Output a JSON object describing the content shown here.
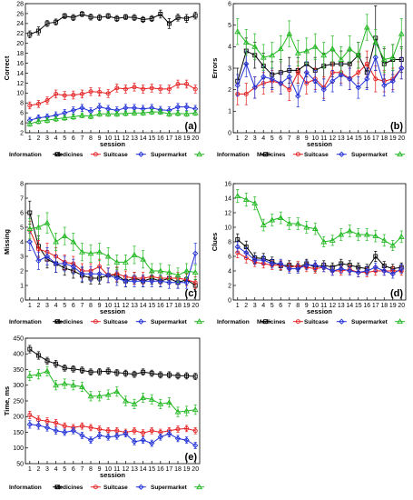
{
  "colors": {
    "Information": "#000000",
    "Medicines": "#e41a1c",
    "Suitcase": "#1f2fd6",
    "Supermarket": "#22b822"
  },
  "legend_labels": [
    "Information",
    "Medicines",
    "Suitcase",
    "Supermarket"
  ],
  "chart_data": [
    {
      "type": "line",
      "panel": "(a)",
      "ylabel": "Correct",
      "xlabel": "session",
      "ylim": [
        2,
        28
      ],
      "yticks": [
        2,
        4,
        6,
        8,
        10,
        12,
        14,
        16,
        18,
        20,
        22,
        24,
        26,
        28
      ],
      "x": [
        1,
        2,
        3,
        4,
        5,
        6,
        7,
        8,
        9,
        10,
        11,
        12,
        13,
        14,
        15,
        16,
        17,
        18,
        19,
        20
      ],
      "series": [
        {
          "name": "Information",
          "values": [
            21.8,
            22.5,
            24.0,
            24.3,
            25.5,
            25.2,
            25.9,
            25.3,
            25.2,
            25.5,
            25.0,
            25.3,
            25.2,
            24.8,
            25.0,
            25.9,
            24.0,
            25.2,
            25.0,
            25.6
          ],
          "error": [
            0.7,
            0.8,
            0.6,
            0.6,
            0.5,
            0.6,
            0.5,
            0.6,
            0.6,
            0.5,
            0.6,
            0.5,
            0.6,
            0.6,
            0.6,
            0.8,
            1.0,
            0.7,
            0.8,
            0.7
          ]
        },
        {
          "name": "Medicines",
          "values": [
            7.5,
            7.8,
            8.5,
            9.8,
            9.5,
            9.6,
            9.8,
            10.3,
            10.2,
            9.9,
            11.0,
            10.8,
            11.2,
            10.8,
            11.0,
            10.8,
            10.8,
            11.8,
            11.8,
            10.8
          ],
          "error": [
            0.7,
            0.7,
            0.7,
            0.8,
            0.8,
            0.8,
            0.8,
            0.8,
            0.8,
            0.8,
            0.8,
            0.8,
            0.8,
            0.8,
            0.8,
            0.8,
            0.8,
            0.8,
            0.8,
            0.8
          ]
        },
        {
          "name": "Suitcase",
          "values": [
            4.5,
            5.0,
            5.2,
            5.5,
            6.0,
            6.5,
            7.0,
            6.3,
            7.2,
            6.8,
            6.5,
            7.0,
            7.0,
            6.8,
            7.0,
            6.6,
            6.5,
            7.2,
            7.2,
            6.8
          ],
          "error": [
            0.6,
            0.6,
            0.6,
            0.7,
            0.7,
            0.7,
            0.7,
            0.7,
            0.7,
            0.7,
            0.7,
            0.7,
            0.7,
            0.7,
            0.7,
            0.7,
            0.7,
            0.7,
            0.7,
            0.7
          ]
        },
        {
          "name": "Supermarket",
          "values": [
            3.8,
            4.3,
            4.5,
            4.8,
            5.0,
            5.2,
            5.5,
            5.3,
            5.8,
            5.8,
            5.8,
            5.9,
            6.0,
            6.0,
            6.2,
            6.2,
            5.8,
            5.9,
            5.8,
            6.0
          ],
          "error": [
            0.5,
            0.5,
            0.5,
            0.5,
            0.5,
            0.5,
            0.5,
            0.5,
            0.5,
            0.5,
            0.5,
            0.5,
            0.5,
            0.5,
            0.5,
            0.5,
            0.5,
            0.5,
            0.5,
            0.5
          ]
        }
      ]
    },
    {
      "type": "line",
      "panel": "(b)",
      "ylabel": "Errors",
      "xlabel": "session",
      "ylim": [
        0,
        6
      ],
      "yticks": [
        0,
        1,
        2,
        3,
        4,
        5,
        6
      ],
      "x": [
        1,
        2,
        3,
        4,
        5,
        6,
        7,
        8,
        9,
        10,
        11,
        12,
        13,
        14,
        15,
        16,
        17,
        18,
        19,
        20
      ],
      "series": [
        {
          "name": "Information",
          "values": [
            2.4,
            3.8,
            3.6,
            3.1,
            2.7,
            2.8,
            2.9,
            2.9,
            3.2,
            2.9,
            3.1,
            3.2,
            3.2,
            3.2,
            3.6,
            2.8,
            4.4,
            3.2,
            3.4,
            3.4
          ],
          "error": [
            0.6,
            0.6,
            0.6,
            0.6,
            0.6,
            0.6,
            0.6,
            0.6,
            0.6,
            0.6,
            0.6,
            0.6,
            0.6,
            0.6,
            0.6,
            0.7,
            1.5,
            0.7,
            0.7,
            0.6
          ]
        },
        {
          "name": "Medicines",
          "values": [
            1.8,
            1.8,
            2.1,
            2.3,
            2.4,
            2.3,
            2.0,
            2.8,
            2.3,
            2.5,
            2.1,
            2.8,
            2.8,
            2.5,
            2.8,
            3.2,
            2.5,
            2.4,
            2.5,
            3.0
          ],
          "error": [
            0.5,
            0.5,
            0.5,
            0.5,
            0.5,
            0.5,
            0.5,
            0.5,
            0.5,
            0.5,
            0.5,
            0.5,
            0.5,
            0.5,
            0.5,
            0.6,
            0.6,
            0.5,
            0.5,
            0.5
          ]
        },
        {
          "name": "Suitcase",
          "values": [
            2.2,
            3.2,
            2.1,
            2.6,
            2.5,
            2.3,
            2.6,
            1.7,
            2.8,
            2.4,
            2.0,
            2.4,
            2.7,
            2.5,
            2.1,
            2.5,
            3.5,
            2.2,
            2.4,
            3.0
          ],
          "error": [
            0.5,
            0.6,
            0.5,
            0.5,
            0.5,
            0.5,
            0.5,
            0.5,
            0.5,
            0.5,
            0.5,
            0.5,
            0.5,
            0.5,
            0.5,
            0.5,
            0.6,
            0.5,
            0.5,
            0.5
          ]
        },
        {
          "name": "Supermarket",
          "values": [
            4.7,
            4.2,
            4.0,
            3.5,
            3.6,
            3.9,
            4.6,
            3.7,
            3.8,
            4.0,
            3.6,
            3.9,
            3.4,
            3.9,
            3.6,
            4.9,
            4.2,
            3.4,
            3.5,
            4.6
          ],
          "error": [
            0.6,
            0.6,
            0.6,
            0.6,
            0.6,
            0.6,
            0.6,
            0.6,
            0.6,
            0.6,
            0.6,
            0.6,
            0.6,
            0.6,
            0.6,
            0.6,
            0.6,
            0.6,
            0.6,
            0.7
          ]
        }
      ]
    },
    {
      "type": "line",
      "panel": "(c)",
      "ylabel": "Missing",
      "xlabel": "session",
      "ylim": [
        0,
        8
      ],
      "yticks": [
        0,
        1,
        2,
        3,
        4,
        5,
        6,
        7,
        8
      ],
      "x": [
        1,
        2,
        3,
        4,
        5,
        6,
        7,
        8,
        9,
        10,
        11,
        12,
        13,
        14,
        15,
        16,
        17,
        18,
        19,
        20
      ],
      "series": [
        {
          "name": "Information",
          "values": [
            6.0,
            3.7,
            2.8,
            2.5,
            2.2,
            2.0,
            1.7,
            1.5,
            1.5,
            1.7,
            1.7,
            1.3,
            1.5,
            1.3,
            1.5,
            1.3,
            1.5,
            1.2,
            1.4,
            1.0
          ],
          "error": [
            0.8,
            0.7,
            0.6,
            0.6,
            0.5,
            0.5,
            0.5,
            0.4,
            0.4,
            0.5,
            0.5,
            0.4,
            0.4,
            0.4,
            0.4,
            0.4,
            0.4,
            0.4,
            0.4,
            0.4
          ]
        },
        {
          "name": "Medicines",
          "values": [
            4.8,
            3.5,
            3.3,
            3.0,
            2.6,
            2.5,
            2.0,
            2.0,
            2.3,
            1.7,
            1.8,
            1.6,
            1.5,
            1.5,
            1.6,
            1.5,
            1.5,
            1.5,
            1.4,
            1.2
          ],
          "error": [
            0.6,
            0.6,
            0.6,
            0.6,
            0.5,
            0.5,
            0.5,
            0.5,
            0.5,
            0.5,
            0.5,
            0.4,
            0.4,
            0.4,
            0.4,
            0.4,
            0.4,
            0.4,
            0.4,
            0.4
          ]
        },
        {
          "name": "Suitcase",
          "values": [
            4.0,
            2.7,
            3.0,
            2.5,
            2.5,
            2.3,
            1.8,
            1.8,
            1.8,
            1.7,
            1.5,
            1.3,
            1.3,
            1.3,
            1.3,
            1.3,
            1.2,
            1.2,
            1.2,
            3.2
          ],
          "error": [
            0.6,
            0.6,
            0.6,
            0.6,
            0.5,
            0.5,
            0.5,
            0.5,
            0.5,
            0.5,
            0.5,
            0.4,
            0.4,
            0.4,
            0.4,
            0.4,
            0.4,
            0.4,
            0.4,
            0.7
          ]
        },
        {
          "name": "Supermarket",
          "values": [
            4.9,
            5.0,
            5.3,
            4.0,
            4.4,
            4.0,
            3.3,
            3.2,
            3.3,
            3.0,
            2.6,
            2.6,
            3.1,
            2.8,
            2.0,
            2.0,
            1.9,
            1.7,
            2.0,
            1.9
          ],
          "error": [
            0.7,
            0.8,
            0.7,
            0.6,
            0.6,
            0.6,
            0.6,
            0.6,
            0.6,
            0.6,
            0.5,
            0.5,
            0.6,
            0.6,
            0.5,
            0.5,
            0.5,
            0.5,
            0.5,
            0.5
          ]
        }
      ]
    },
    {
      "type": "line",
      "panel": "(d)",
      "ylabel": "Clues",
      "xlabel": "session",
      "ylim": [
        0,
        16
      ],
      "yticks": [
        0,
        2,
        4,
        6,
        8,
        10,
        12,
        14,
        16
      ],
      "x": [
        1,
        2,
        3,
        4,
        5,
        6,
        7,
        8,
        9,
        10,
        11,
        12,
        13,
        14,
        15,
        16,
        17,
        18,
        19,
        20
      ],
      "series": [
        {
          "name": "Information",
          "values": [
            8.3,
            7.3,
            5.8,
            5.7,
            5.3,
            4.7,
            4.8,
            4.5,
            5.0,
            4.5,
            4.8,
            4.5,
            5.0,
            4.8,
            4.5,
            4.3,
            6.0,
            4.7,
            4.3,
            4.5
          ],
          "error": [
            0.8,
            0.8,
            0.7,
            0.7,
            0.6,
            0.6,
            0.6,
            0.6,
            0.6,
            0.6,
            0.6,
            0.6,
            0.6,
            0.6,
            0.6,
            0.6,
            0.7,
            0.6,
            0.6,
            0.6
          ]
        },
        {
          "name": "Medicines",
          "values": [
            6.5,
            5.8,
            5.2,
            5.0,
            4.8,
            4.8,
            4.5,
            4.7,
            4.5,
            4.3,
            4.5,
            4.0,
            4.0,
            4.2,
            3.8,
            3.8,
            4.0,
            4.0,
            4.0,
            4.0
          ],
          "error": [
            0.7,
            0.7,
            0.6,
            0.6,
            0.6,
            0.6,
            0.6,
            0.6,
            0.6,
            0.6,
            0.6,
            0.6,
            0.6,
            0.6,
            0.6,
            0.6,
            0.6,
            0.6,
            0.6,
            0.6
          ]
        },
        {
          "name": "Suitcase",
          "values": [
            7.3,
            6.5,
            5.5,
            5.5,
            5.0,
            5.0,
            4.3,
            4.3,
            4.8,
            4.8,
            4.5,
            4.0,
            4.3,
            4.0,
            3.8,
            4.0,
            4.5,
            4.0,
            3.6,
            4.3
          ],
          "error": [
            0.7,
            0.7,
            0.6,
            0.6,
            0.6,
            0.6,
            0.6,
            0.6,
            0.6,
            0.6,
            0.6,
            0.6,
            0.6,
            0.6,
            0.6,
            0.6,
            0.6,
            0.6,
            0.6,
            0.6
          ]
        },
        {
          "name": "Supermarket",
          "values": [
            14.3,
            13.8,
            13.3,
            10.3,
            11.0,
            11.3,
            10.5,
            10.5,
            10.0,
            9.8,
            8.0,
            8.2,
            9.0,
            9.5,
            9.0,
            9.0,
            8.8,
            8.2,
            7.5,
            8.7
          ],
          "error": [
            0.9,
            0.9,
            0.9,
            0.8,
            0.8,
            0.8,
            0.8,
            0.8,
            0.8,
            0.8,
            0.7,
            0.7,
            0.8,
            0.8,
            0.8,
            0.8,
            0.8,
            0.8,
            0.7,
            0.8
          ]
        }
      ]
    },
    {
      "type": "line",
      "panel": "(e)",
      "ylabel": "Time, ms",
      "xlabel": "session",
      "ylim": [
        50,
        450
      ],
      "yticks": [
        50,
        100,
        150,
        200,
        250,
        300,
        350,
        400,
        450
      ],
      "x": [
        1,
        2,
        3,
        4,
        5,
        6,
        7,
        8,
        9,
        10,
        11,
        12,
        13,
        14,
        15,
        16,
        17,
        18,
        19,
        20
      ],
      "series": [
        {
          "name": "Information",
          "values": [
            415,
            395,
            378,
            368,
            355,
            352,
            348,
            342,
            343,
            345,
            340,
            338,
            335,
            342,
            338,
            333,
            333,
            330,
            330,
            328
          ],
          "error": [
            12,
            12,
            11,
            11,
            10,
            10,
            10,
            10,
            10,
            10,
            10,
            10,
            10,
            10,
            10,
            10,
            10,
            10,
            10,
            10
          ]
        },
        {
          "name": "Medicines",
          "values": [
            205,
            190,
            185,
            180,
            170,
            165,
            170,
            165,
            160,
            155,
            155,
            150,
            155,
            148,
            155,
            150,
            155,
            160,
            162,
            155
          ],
          "error": [
            12,
            12,
            11,
            11,
            10,
            10,
            10,
            10,
            10,
            10,
            10,
            10,
            10,
            10,
            10,
            10,
            10,
            10,
            10,
            10
          ]
        },
        {
          "name": "Suitcase",
          "values": [
            175,
            172,
            165,
            155,
            150,
            155,
            140,
            125,
            140,
            135,
            138,
            145,
            120,
            125,
            115,
            135,
            145,
            130,
            125,
            108
          ],
          "error": [
            12,
            12,
            11,
            11,
            10,
            10,
            10,
            10,
            10,
            10,
            10,
            10,
            10,
            10,
            10,
            10,
            10,
            10,
            10,
            10
          ]
        },
        {
          "name": "Supermarket",
          "values": [
            330,
            335,
            345,
            300,
            305,
            300,
            295,
            265,
            265,
            270,
            280,
            250,
            240,
            260,
            255,
            240,
            245,
            215,
            218,
            222
          ],
          "error": [
            15,
            15,
            15,
            15,
            15,
            15,
            15,
            15,
            15,
            15,
            15,
            15,
            15,
            15,
            15,
            15,
            15,
            15,
            15,
            15
          ]
        }
      ]
    }
  ]
}
